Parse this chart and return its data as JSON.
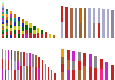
{
  "bg_color": "#ffffff",
  "panels": [
    {
      "note": "top-left: descending multicolor stacked bars, many colors",
      "n_bars": 14,
      "bar_width": 0.55,
      "ylim": 1.02,
      "heights": [
        0.97,
        0.8,
        0.74,
        0.64,
        0.57,
        0.52,
        0.46,
        0.4,
        0.34,
        0.28,
        0.22,
        0.17,
        0.12,
        0.08
      ],
      "color_sets": [
        [
          "#cc2222",
          "#dd4444",
          "#006600",
          "#228822",
          "#cc6600",
          "#996633",
          "#cccc00",
          "#2222cc",
          "#6666ff",
          "#cc22cc",
          "#009999",
          "#ff9900",
          "#339966",
          "#ff66ff",
          "#6666aa",
          "#99aaff",
          "#ffcc88",
          "#aaffcc"
        ],
        [
          "#006600",
          "#cc2222",
          "#228822",
          "#cccc00",
          "#996633",
          "#2222cc",
          "#cc6600",
          "#ff9900",
          "#009999",
          "#336633"
        ],
        [
          "#2222cc",
          "#cc2222",
          "#cccc00",
          "#006600",
          "#cc6600",
          "#228822",
          "#cc22cc",
          "#ff9900"
        ],
        [
          "#cc2222",
          "#006600",
          "#cccc00",
          "#2222cc",
          "#009999",
          "#cc6600"
        ],
        [
          "#006600",
          "#cc2222",
          "#cccc00",
          "#228822",
          "#2222cc"
        ],
        [
          "#cc2222",
          "#cccc00",
          "#006600",
          "#2222cc",
          "#cc6600"
        ],
        [
          "#cc22cc",
          "#cc2222",
          "#006600",
          "#cccc00"
        ],
        [
          "#cc2222",
          "#006600",
          "#cccc00"
        ],
        [
          "#cc2222",
          "#cccc00",
          "#006600"
        ],
        [
          "#cc2222",
          "#cccc00"
        ],
        [
          "#cc2222",
          "#006600"
        ],
        [
          "#cc2222"
        ],
        [
          "#cccc00"
        ],
        [
          "#cc6600"
        ]
      ]
    },
    {
      "note": "top-right: nearly equal height bars, mostly single solid colors, slight variation",
      "n_bars": 12,
      "bar_width": 0.55,
      "ylim": 0.75,
      "heights": [
        0.64,
        0.62,
        0.6,
        0.6,
        0.6,
        0.6,
        0.6,
        0.6,
        0.6,
        0.58,
        0.58,
        0.55
      ],
      "color_sets": [
        [
          "#aaaacc",
          "#cc2222"
        ],
        [
          "#cc2222"
        ],
        [
          "#aa6644"
        ],
        [
          "#888888"
        ],
        [
          "#996633",
          "#cc6600"
        ],
        [
          "#996633"
        ],
        [
          "#aaaacc"
        ],
        [
          "#888888",
          "#aaaacc"
        ],
        [
          "#cc2222",
          "#aaaacc"
        ],
        [
          "#aaaacc"
        ],
        [
          "#aaaacc"
        ],
        [
          "#8888aa"
        ]
      ]
    },
    {
      "note": "bottom-left: many bars roughly equal height with segment colors, slight decrease",
      "n_bars": 18,
      "bar_width": 0.55,
      "ylim": 0.75,
      "heights": [
        0.6,
        0.58,
        0.58,
        0.58,
        0.56,
        0.56,
        0.55,
        0.54,
        0.53,
        0.52,
        0.5,
        0.48,
        0.44,
        0.38,
        0.3,
        0.24,
        0.18,
        0.12
      ],
      "color_sets": [
        [
          "#cc22cc",
          "#cc2222",
          "#888888"
        ],
        [
          "#cc2222",
          "#888888",
          "#aaaacc"
        ],
        [
          "#aaaacc",
          "#cc2222",
          "#cc22cc"
        ],
        [
          "#888888",
          "#996633",
          "#cc2222"
        ],
        [
          "#cc2222",
          "#aaaacc",
          "#888888"
        ],
        [
          "#aaaacc",
          "#cc22cc",
          "#996633"
        ],
        [
          "#cc2222",
          "#888888"
        ],
        [
          "#aaaacc",
          "#cc2222"
        ],
        [
          "#996633",
          "#aaaacc"
        ],
        [
          "#cc2222",
          "#cc22cc"
        ],
        [
          "#aaaacc",
          "#888888"
        ],
        [
          "#cc2222",
          "#996633"
        ],
        [
          "#cc22cc",
          "#cc2222"
        ],
        [
          "#cc2222"
        ],
        [
          "#888888"
        ],
        [
          "#cc2222"
        ],
        [
          "#ff2288"
        ],
        [
          "#cc2222"
        ]
      ]
    },
    {
      "note": "bottom-right: bars with orange/pink/magenta prominent, medium-tall",
      "n_bars": 10,
      "bar_width": 0.55,
      "ylim": 0.75,
      "heights": [
        0.6,
        0.58,
        0.56,
        0.54,
        0.52,
        0.5,
        0.46,
        0.4,
        0.34,
        0.28
      ],
      "color_sets": [
        [
          "#cc6633",
          "#cc2222",
          "#996633",
          "#ff9900"
        ],
        [
          "#cc22cc",
          "#cc6633",
          "#cc2222"
        ],
        [
          "#cc2222",
          "#888888",
          "#cc22cc"
        ],
        [
          "#996633",
          "#cc2222",
          "#888888"
        ],
        [
          "#cc6633",
          "#cc2222"
        ],
        [
          "#cc2222",
          "#cc22cc"
        ],
        [
          "#cc2222",
          "#888888"
        ],
        [
          "#ff2288",
          "#cc2222"
        ],
        [
          "#cc22cc"
        ],
        [
          "#cc2222"
        ]
      ]
    }
  ]
}
